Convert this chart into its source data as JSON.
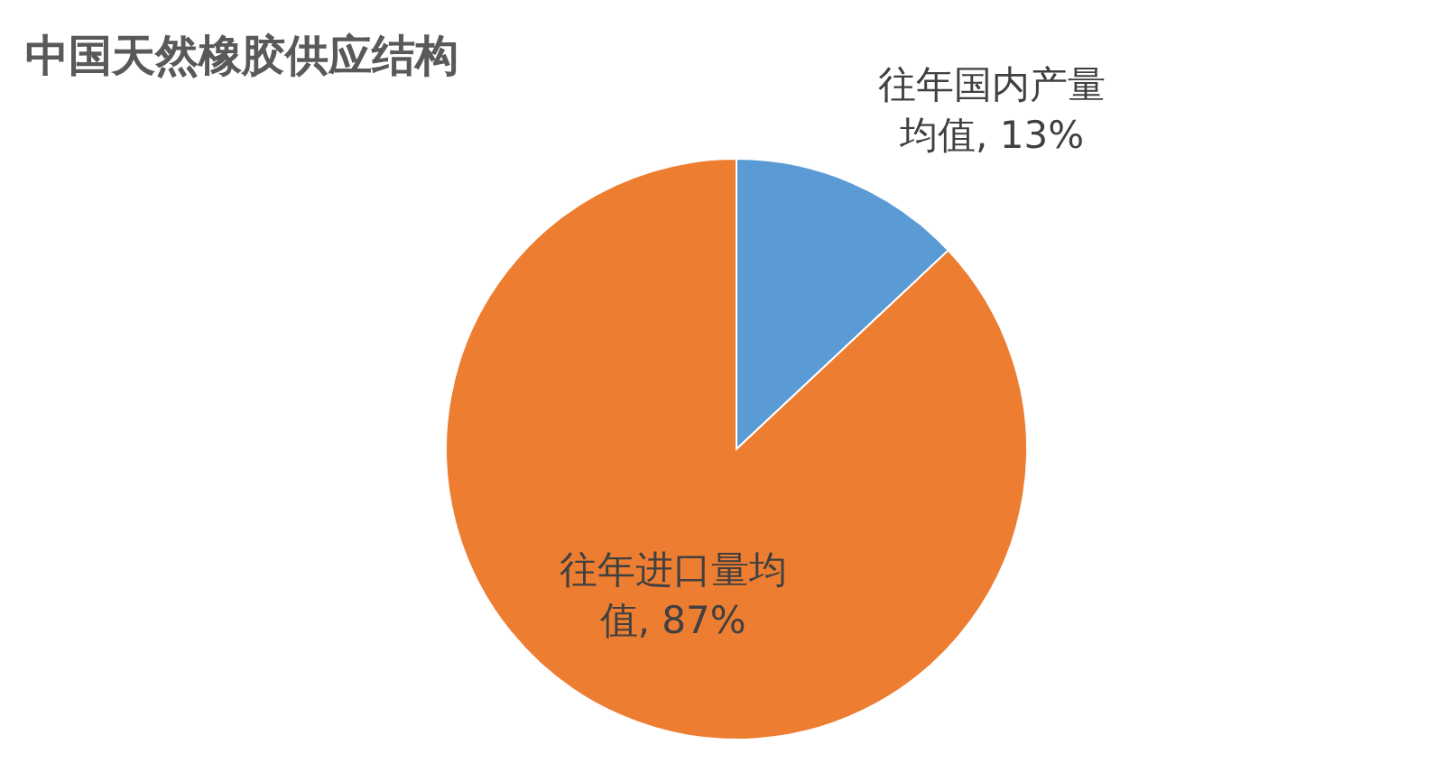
{
  "chart_data": {
    "type": "pie",
    "title": "中国天然橡胶供应结构",
    "categories": [
      "往年国内产量均值",
      "往年进口量均值"
    ],
    "values": [
      13,
      87
    ],
    "colors": [
      "#5b9bd5",
      "#ed7d31"
    ],
    "value_labels": [
      "13%",
      "87%"
    ]
  }
}
